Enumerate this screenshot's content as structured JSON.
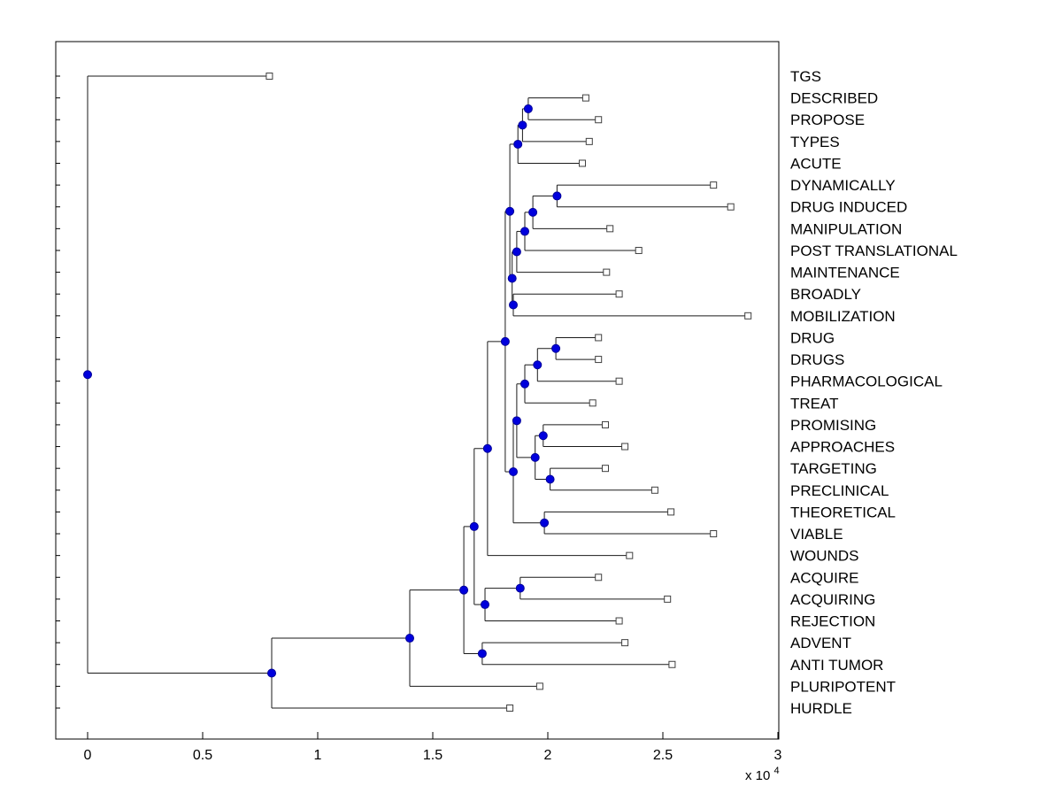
{
  "figure": {
    "background": "#ffffff"
  },
  "chart_data": {
    "type": "dendrogram",
    "orientation": "horizontal",
    "title": "",
    "grid": false,
    "legend": null,
    "x_axis": {
      "tick_values": [
        0,
        0.5,
        1,
        1.5,
        2,
        2.5,
        3
      ],
      "tick_labels": [
        "0",
        "0.5",
        "1",
        "1.5",
        "2",
        "2.5",
        "3"
      ],
      "exponent_prefix": "x 10",
      "exponent": "4",
      "unit_scale": 10000,
      "range": [
        -0.14,
        3.0
      ]
    },
    "y_axis": {
      "tick_labels": [],
      "rows": 30
    },
    "styles": {
      "line_color": "#1a1a1a",
      "internal_marker_fill": "#0000dd",
      "internal_marker_edge": "#000099",
      "leaf_marker_fill": "#ffffff",
      "leaf_marker_edge": "#404040",
      "axis_color": "#000000",
      "label_color": "#000000"
    },
    "leaves": [
      {
        "label": "TGS",
        "x": 0.79
      },
      {
        "label": "DESCRIBED",
        "x": 2.165
      },
      {
        "label": "PROPOSE",
        "x": 2.22
      },
      {
        "label": "TYPES",
        "x": 2.18
      },
      {
        "label": "ACUTE",
        "x": 2.15
      },
      {
        "label": "DYNAMICALLY",
        "x": 2.72
      },
      {
        "label": "DRUG INDUCED",
        "x": 2.795
      },
      {
        "label": "MANIPULATION",
        "x": 2.27
      },
      {
        "label": "POST TRANSLATIONAL",
        "x": 2.395
      },
      {
        "label": "MAINTENANCE",
        "x": 2.255
      },
      {
        "label": "BROADLY",
        "x": 2.31
      },
      {
        "label": "MOBILIZATION",
        "x": 2.87
      },
      {
        "label": "DRUG",
        "x": 2.22
      },
      {
        "label": "DRUGS",
        "x": 2.22
      },
      {
        "label": "PHARMACOLOGICAL",
        "x": 2.31
      },
      {
        "label": "TREAT",
        "x": 2.195
      },
      {
        "label": "PROMISING",
        "x": 2.25
      },
      {
        "label": "APPROACHES",
        "x": 2.335
      },
      {
        "label": "TARGETING",
        "x": 2.25
      },
      {
        "label": "PRECLINICAL",
        "x": 2.465
      },
      {
        "label": "THEORETICAL",
        "x": 2.535
      },
      {
        "label": "VIABLE",
        "x": 2.72
      },
      {
        "label": "WOUNDS",
        "x": 2.355
      },
      {
        "label": "ACQUIRE",
        "x": 2.22
      },
      {
        "label": "ACQUIRING",
        "x": 2.52
      },
      {
        "label": "REJECTION",
        "x": 2.31
      },
      {
        "label": "ADVENT",
        "x": 2.335
      },
      {
        "label": "ANTI TUMOR",
        "x": 2.54
      },
      {
        "label": "PLURIPOTENT",
        "x": 1.965
      },
      {
        "label": "HURDLE",
        "x": 1.835
      }
    ],
    "internal_nodes": [
      {
        "id": "nA1",
        "x": 1.915,
        "children": [
          "DESCRIBED",
          "PROPOSE"
        ]
      },
      {
        "id": "nA2",
        "x": 1.89,
        "children": [
          "nA1",
          "TYPES"
        ]
      },
      {
        "id": "nA3",
        "x": 1.87,
        "children": [
          "nA2",
          "ACUTE"
        ]
      },
      {
        "id": "nB1",
        "x": 2.04,
        "children": [
          "DYNAMICALLY",
          "DRUG INDUCED"
        ]
      },
      {
        "id": "nB2",
        "x": 1.935,
        "children": [
          "nB1",
          "MANIPULATION"
        ]
      },
      {
        "id": "nB3",
        "x": 1.9,
        "children": [
          "nB2",
          "POST TRANSLATIONAL"
        ]
      },
      {
        "id": "nB4",
        "x": 1.865,
        "children": [
          "nB3",
          "MAINTENANCE"
        ]
      },
      {
        "id": "nC1",
        "x": 1.85,
        "children": [
          "BROADLY",
          "MOBILIZATION"
        ]
      },
      {
        "id": "nB5",
        "x": 1.845,
        "children": [
          "nB4",
          "nC1"
        ]
      },
      {
        "id": "nAB",
        "x": 1.835,
        "children": [
          "nA3",
          "nB5"
        ]
      },
      {
        "id": "nD1",
        "x": 2.035,
        "children": [
          "DRUG",
          "DRUGS"
        ]
      },
      {
        "id": "nD2",
        "x": 1.955,
        "children": [
          "nD1",
          "PHARMACOLOGICAL"
        ]
      },
      {
        "id": "nD3",
        "x": 1.9,
        "children": [
          "nD2",
          "TREAT"
        ]
      },
      {
        "id": "nE1",
        "x": 1.98,
        "children": [
          "PROMISING",
          "APPROACHES"
        ]
      },
      {
        "id": "nE2",
        "x": 2.01,
        "children": [
          "TARGETING",
          "PRECLINICAL"
        ]
      },
      {
        "id": "nE3",
        "x": 1.945,
        "children": [
          "nE1",
          "nE2"
        ]
      },
      {
        "id": "nDE",
        "x": 1.865,
        "children": [
          "nD3",
          "nE3"
        ]
      },
      {
        "id": "nF1",
        "x": 1.985,
        "children": [
          "THEORETICAL",
          "VIABLE"
        ]
      },
      {
        "id": "nM",
        "x": 1.85,
        "children": [
          "nDE",
          "nF1"
        ]
      },
      {
        "id": "R6",
        "x": 1.815,
        "children": [
          "nAB",
          "nM"
        ]
      },
      {
        "id": "R5",
        "x": 1.738,
        "children": [
          "R6",
          "WOUNDS"
        ]
      },
      {
        "id": "nI1",
        "x": 1.88,
        "children": [
          "ACQUIRE",
          "ACQUIRING"
        ]
      },
      {
        "id": "nI2",
        "x": 1.727,
        "children": [
          "nI1",
          "REJECTION"
        ]
      },
      {
        "id": "R4",
        "x": 1.68,
        "children": [
          "R5",
          "nI2"
        ]
      },
      {
        "id": "nJ1",
        "x": 1.715,
        "children": [
          "ADVENT",
          "ANTI TUMOR"
        ]
      },
      {
        "id": "R3",
        "x": 1.635,
        "children": [
          "R4",
          "nJ1"
        ]
      },
      {
        "id": "R2",
        "x": 1.4,
        "children": [
          "R3",
          "PLURIPOTENT"
        ]
      },
      {
        "id": "R1",
        "x": 0.8,
        "children": [
          "R2",
          "HURDLE"
        ]
      },
      {
        "id": "root",
        "x": 0.0,
        "children": [
          "TGS",
          "R1"
        ]
      }
    ]
  }
}
